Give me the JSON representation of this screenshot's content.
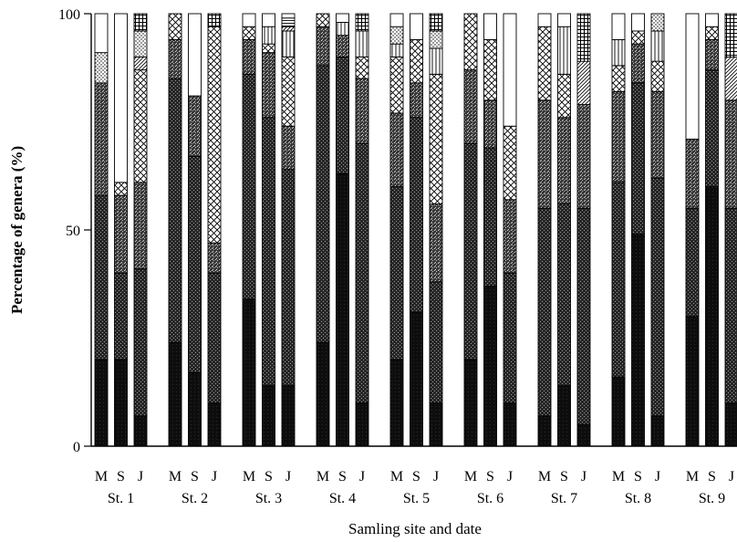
{
  "chart_data": {
    "type": "bar",
    "stacked": true,
    "ylabel": "Percentage of genera (%)",
    "xlabel": "Samling site and date",
    "ylim": [
      0,
      100
    ],
    "yticks": [
      "0",
      "50",
      "100"
    ],
    "sites": [
      "St. 1",
      "St. 2",
      "St. 3",
      "St. 4",
      "St. 5",
      "St. 6",
      "St. 7",
      "St. 8",
      "St. 9"
    ],
    "dates": [
      "M",
      "S",
      "J"
    ],
    "segment_order": [
      "solid",
      "cross-dotted",
      "dotted",
      "x-cross",
      "vertical-lines",
      "diagonal",
      "stipple",
      "grid",
      "horizontal-lines",
      "white"
    ],
    "segment_colors": {
      "solid": "#111111",
      "cross-dotted": "#333333",
      "dotted": "#555555",
      "white": "#ffffff"
    },
    "bars": [
      {
        "site": "St. 1",
        "date": "M",
        "values": {
          "solid": 20,
          "cross-dotted": 38,
          "dotted": 26,
          "stipple": 7,
          "white": 9
        }
      },
      {
        "site": "St. 1",
        "date": "S",
        "values": {
          "solid": 20,
          "cross-dotted": 20,
          "dotted": 18,
          "x-cross": 3,
          "white": 39
        }
      },
      {
        "site": "St. 1",
        "date": "J",
        "values": {
          "solid": 7,
          "cross-dotted": 34,
          "dotted": 20,
          "x-cross": 26,
          "stipple": 6,
          "diagonal": 3,
          "grid": 4
        }
      },
      {
        "site": "St. 2",
        "date": "M",
        "values": {
          "solid": 24,
          "cross-dotted": 61,
          "dotted": 9,
          "x-cross": 6
        }
      },
      {
        "site": "St. 2",
        "date": "S",
        "values": {
          "solid": 17,
          "cross-dotted": 50,
          "dotted": 14,
          "white": 19
        }
      },
      {
        "site": "St. 2",
        "date": "J",
        "values": {
          "solid": 10,
          "cross-dotted": 30,
          "dotted": 7,
          "x-cross": 50,
          "grid": 3
        }
      },
      {
        "site": "St. 3",
        "date": "M",
        "values": {
          "solid": 34,
          "cross-dotted": 52,
          "dotted": 8,
          "x-cross": 3,
          "white": 3
        }
      },
      {
        "site": "St. 3",
        "date": "S",
        "values": {
          "solid": 14,
          "cross-dotted": 62,
          "dotted": 15,
          "x-cross": 2,
          "vertical-lines": 4,
          "white": 3
        }
      },
      {
        "site": "St. 3",
        "date": "J",
        "values": {
          "solid": 14,
          "cross-dotted": 50,
          "dotted": 10,
          "x-cross": 16,
          "vertical-lines": 6,
          "diagonal": 1,
          "horizontal-lines": 2,
          "white": 1
        }
      },
      {
        "site": "St. 4",
        "date": "M",
        "values": {
          "solid": 24,
          "cross-dotted": 64,
          "dotted": 9,
          "x-cross": 3
        }
      },
      {
        "site": "St. 4",
        "date": "S",
        "values": {
          "solid": 63,
          "cross-dotted": 27,
          "dotted": 5,
          "vertical-lines": 3,
          "white": 2
        }
      },
      {
        "site": "St. 4",
        "date": "J",
        "values": {
          "solid": 10,
          "cross-dotted": 60,
          "dotted": 15,
          "x-cross": 5,
          "vertical-lines": 6,
          "grid": 4
        }
      },
      {
        "site": "St. 5",
        "date": "M",
        "values": {
          "solid": 20,
          "cross-dotted": 40,
          "dotted": 17,
          "x-cross": 13,
          "vertical-lines": 3,
          "stipple": 4,
          "white": 3
        }
      },
      {
        "site": "St. 5",
        "date": "S",
        "values": {
          "solid": 31,
          "cross-dotted": 45,
          "dotted": 8,
          "x-cross": 10,
          "white": 6
        }
      },
      {
        "site": "St. 5",
        "date": "J",
        "values": {
          "solid": 10,
          "cross-dotted": 28,
          "dotted": 18,
          "x-cross": 30,
          "vertical-lines": 6,
          "stipple": 4,
          "grid": 4
        }
      },
      {
        "site": "St. 6",
        "date": "M",
        "values": {
          "solid": 20,
          "cross-dotted": 50,
          "dotted": 17,
          "x-cross": 13
        }
      },
      {
        "site": "St. 6",
        "date": "S",
        "values": {
          "solid": 37,
          "cross-dotted": 32,
          "dotted": 11,
          "x-cross": 14,
          "white": 6
        }
      },
      {
        "site": "St. 6",
        "date": "J",
        "values": {
          "solid": 10,
          "cross-dotted": 30,
          "dotted": 17,
          "x-cross": 17,
          "white": 26
        }
      },
      {
        "site": "St. 7",
        "date": "M",
        "values": {
          "solid": 7,
          "cross-dotted": 48,
          "dotted": 25,
          "x-cross": 17,
          "white": 3
        }
      },
      {
        "site": "St. 7",
        "date": "S",
        "values": {
          "solid": 14,
          "cross-dotted": 42,
          "dotted": 20,
          "x-cross": 10,
          "vertical-lines": 11,
          "white": 3
        }
      },
      {
        "site": "St. 7",
        "date": "J",
        "values": {
          "solid": 5,
          "cross-dotted": 50,
          "dotted": 24,
          "diagonal": 10,
          "grid": 11
        }
      },
      {
        "site": "St. 8",
        "date": "M",
        "values": {
          "solid": 16,
          "cross-dotted": 45,
          "dotted": 21,
          "x-cross": 6,
          "vertical-lines": 6,
          "white": 6
        }
      },
      {
        "site": "St. 8",
        "date": "S",
        "values": {
          "solid": 49,
          "cross-dotted": 35,
          "dotted": 9,
          "x-cross": 3,
          "white": 4
        }
      },
      {
        "site": "St. 8",
        "date": "J",
        "values": {
          "solid": 7,
          "cross-dotted": 55,
          "dotted": 20,
          "x-cross": 7,
          "vertical-lines": 7,
          "stipple": 4
        }
      },
      {
        "site": "St. 9",
        "date": "M",
        "values": {
          "solid": 30,
          "cross-dotted": 25,
          "dotted": 16,
          "white": 29
        }
      },
      {
        "site": "St. 9",
        "date": "S",
        "values": {
          "solid": 60,
          "cross-dotted": 27,
          "dotted": 7,
          "x-cross": 3,
          "white": 3
        }
      },
      {
        "site": "St. 9",
        "date": "J",
        "values": {
          "solid": 10,
          "cross-dotted": 45,
          "dotted": 25,
          "diagonal": 10,
          "grid": 10
        }
      }
    ]
  }
}
